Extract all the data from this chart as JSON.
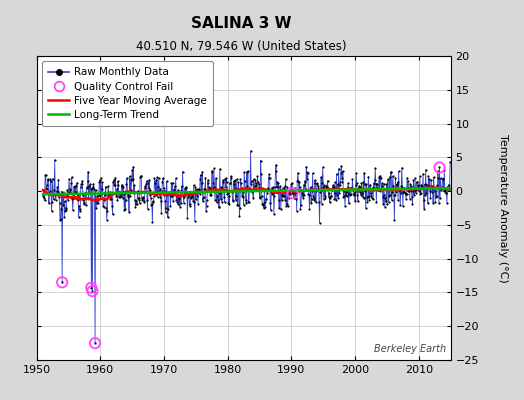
{
  "title": "SALINA 3 W",
  "subtitle": "40.510 N, 79.546 W (United States)",
  "ylabel": "Temperature Anomaly (°C)",
  "watermark": "Berkeley Earth",
  "xlim": [
    1950,
    2015
  ],
  "ylim": [
    -25,
    20
  ],
  "yticks": [
    -25,
    -20,
    -15,
    -10,
    -5,
    0,
    5,
    10,
    15,
    20
  ],
  "xticks": [
    1950,
    1960,
    1970,
    1980,
    1990,
    2000,
    2010
  ],
  "bg_color": "#d8d8d8",
  "plot_bg_color": "#ffffff",
  "raw_line_color": "#3344cc",
  "raw_dot_color": "#000000",
  "moving_avg_color": "#ff0000",
  "trend_color": "#00bb00",
  "qc_fail_color": "#ff44ff",
  "seed": 12345,
  "start_year": 1951.0,
  "end_year": 2015.0,
  "noise_std": 2.0,
  "trend_slope": 0.012,
  "qc_outliers": [
    {
      "idx": 36,
      "val": -13.5
    },
    {
      "idx": 91,
      "val": -14.3
    },
    {
      "idx": 93,
      "val": -14.8
    },
    {
      "idx": 98,
      "val": -22.5
    },
    {
      "idx": 470,
      "val": -0.3
    },
    {
      "idx": 747,
      "val": 3.5
    }
  ]
}
